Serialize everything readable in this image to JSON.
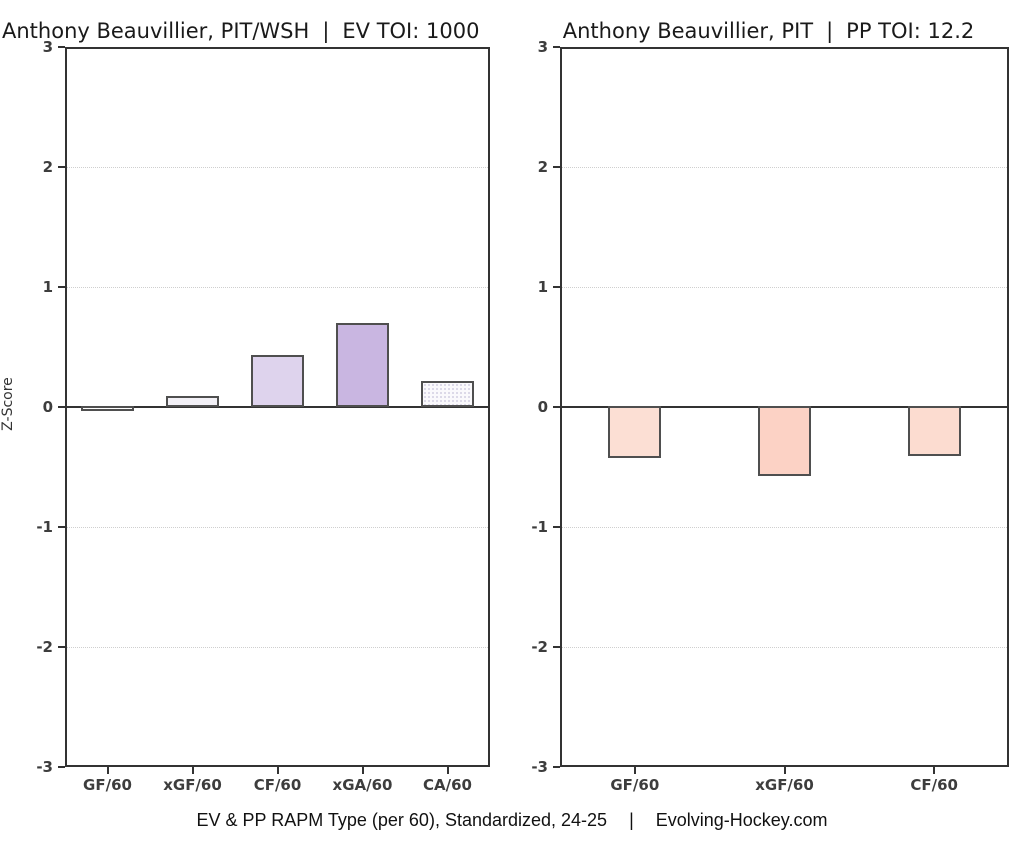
{
  "chart_data": [
    {
      "type": "bar",
      "title": {
        "player": "Anthony Beauvillier, PIT/WSH",
        "separator": "|",
        "stat": "EV TOI: 1000"
      },
      "ylabel": "Z-Score",
      "xlabel": "",
      "categories": [
        "GF/60",
        "xGF/60",
        "CF/60",
        "xGA/60",
        "CA/60"
      ],
      "values": [
        -0.04,
        0.09,
        0.43,
        0.7,
        0.22
      ],
      "bar_fills": [
        "#ffffff",
        "#f2f0f6",
        "#ded3ed",
        "#c9b6e1",
        "#faf9fc"
      ],
      "bar_dot_pattern": [
        false,
        false,
        false,
        false,
        true
      ],
      "ylim": [
        -3,
        3
      ],
      "yticks": [
        3,
        2,
        1,
        0,
        -1,
        -2,
        -3
      ],
      "grid": "dotted horizontal at integer ticks",
      "legend": "none"
    },
    {
      "type": "bar",
      "title": {
        "player": "Anthony Beauvillier, PIT",
        "separator": "|",
        "stat": "PP TOI: 12.2"
      },
      "ylabel": "",
      "xlabel": "",
      "categories": [
        "GF/60",
        "xGF/60",
        "CF/60"
      ],
      "values": [
        -0.43,
        -0.58,
        -0.42
      ],
      "bar_fills": [
        "#fcdfd4",
        "#fcd2c5",
        "#fcdcd0"
      ],
      "bar_dot_pattern": [
        false,
        false,
        false
      ],
      "ylim": [
        -3,
        3
      ],
      "yticks": [
        3,
        2,
        1,
        0,
        -1,
        -2,
        -3
      ],
      "grid": "dotted horizontal at integer ticks",
      "legend": "none"
    }
  ],
  "caption": {
    "left": "EV & PP RAPM Type (per 60), Standardized, 24-25",
    "separator": "|",
    "right": "Evolving-Hockey.com"
  },
  "colors": {
    "background": "#ffffff",
    "axis": "#333333",
    "grid": "#cfcfcf",
    "tick_label": "#3d3d3d",
    "title_text": "#1a1a1a",
    "bar_border": "#4f4f4f",
    "pattern_dot": "#d7d3e4",
    "positive_palette": "purple/lavender scale",
    "negative_palette": "salmon/red scale"
  }
}
